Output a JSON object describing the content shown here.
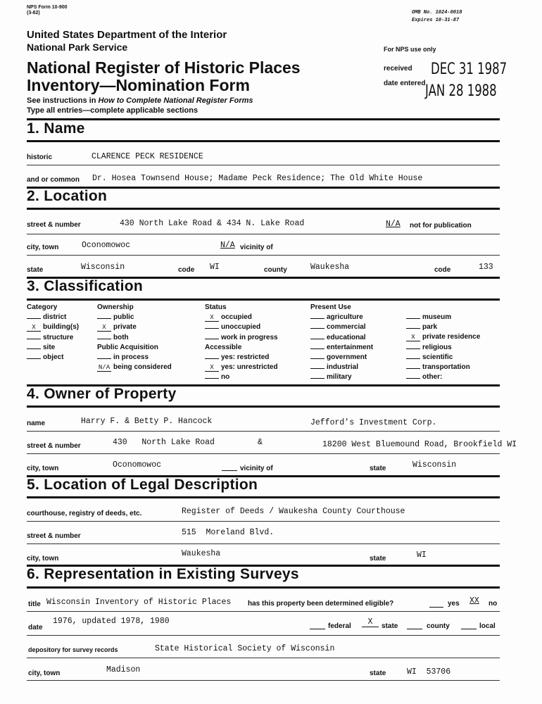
{
  "header": {
    "form_no": "NPS Form 10-900",
    "form_rev": "(3-82)",
    "omb": "OMB No. 1024-0018",
    "expires": "Expires 10-31-87",
    "dept": "United States Department of the Interior",
    "service": "National Park Service",
    "title_line1": "National Register of Historic Places",
    "title_line2": "Inventory—Nomination Form",
    "instructions_prefix": "See instructions in ",
    "instructions_italic": "How to Complete National Register Forms",
    "type_all": "Type all entries—complete applicable sections",
    "nps_use": "For NPS use only",
    "received_label": "received",
    "received_stamp": "DEC 31 1987",
    "entered_label": "date entered",
    "entered_stamp": "JAN 28 1988"
  },
  "s1": {
    "heading": "1. Name",
    "historic_label": "historic",
    "historic": "CLARENCE PECK RESIDENCE",
    "common_label": "and or common",
    "common": "Dr. Hosea Townsend House; Madame Peck Residence; The Old White House"
  },
  "s2": {
    "heading": "2. Location",
    "street_label": "street & number",
    "street": "430 North Lake Road & 434 N. Lake Road",
    "nfp_value": "N/A",
    "nfp_label": "not for publication",
    "city_label": "city, town",
    "city": "Oconomowoc",
    "vicinity_value": "N/A",
    "vicinity_label": "vicinity of",
    "state_label": "state",
    "state": "Wisconsin",
    "code_label": "code",
    "code": "WI",
    "county_label": "county",
    "county": "Waukesha",
    "code2_label": "code",
    "code2": "133"
  },
  "s3": {
    "heading": "3. Classification",
    "category": {
      "title": "Category",
      "items": [
        {
          "mark": "",
          "label": "district"
        },
        {
          "mark": "X",
          "label": "building(s)"
        },
        {
          "mark": "",
          "label": "structure"
        },
        {
          "mark": "",
          "label": "site"
        },
        {
          "mark": "",
          "label": "object"
        }
      ]
    },
    "ownership": {
      "title": "Ownership",
      "items": [
        {
          "mark": "",
          "label": "public"
        },
        {
          "mark": "X",
          "label": "private"
        },
        {
          "mark": "",
          "label": "both"
        }
      ]
    },
    "acquisition": {
      "title": "Public Acquisition",
      "items": [
        {
          "mark": "",
          "label": "in process"
        },
        {
          "mark": "N/A",
          "label": "being considered"
        }
      ]
    },
    "status": {
      "title": "Status",
      "items": [
        {
          "mark": "X",
          "label": "occupied"
        },
        {
          "mark": "",
          "label": "unoccupied"
        },
        {
          "mark": "",
          "label": "work in progress"
        }
      ]
    },
    "accessible": {
      "title": "Accessible",
      "items": [
        {
          "mark": "",
          "label": "yes: restricted"
        },
        {
          "mark": "X",
          "label": "yes: unrestricted"
        },
        {
          "mark": "",
          "label": "no"
        }
      ]
    },
    "present_use": {
      "title": "Present Use",
      "col1": [
        {
          "mark": "",
          "label": "agriculture"
        },
        {
          "mark": "",
          "label": "commercial"
        },
        {
          "mark": "",
          "label": "educational"
        },
        {
          "mark": "",
          "label": "entertainment"
        },
        {
          "mark": "",
          "label": "government"
        },
        {
          "mark": "",
          "label": "industrial"
        },
        {
          "mark": "",
          "label": "military"
        }
      ],
      "col2": [
        {
          "mark": "",
          "label": "museum"
        },
        {
          "mark": "",
          "label": "park"
        },
        {
          "mark": "X",
          "label": "private residence"
        },
        {
          "mark": "",
          "label": "religious"
        },
        {
          "mark": "",
          "label": "scientific"
        },
        {
          "mark": "",
          "label": "transportation"
        },
        {
          "mark": "",
          "label": "other:"
        }
      ]
    }
  },
  "s4": {
    "heading": "4. Owner of Property",
    "name_label": "name",
    "name1": "Harry F. & Betty P. Hancock",
    "name2": "Jefford's Investment Corp.",
    "street_label": "street & number",
    "street1": "430   North Lake Road",
    "amp": "&",
    "street2": "18200 West Bluemound Road, Brookfield WI",
    "city_label": "city, town",
    "city": "Oconomowoc",
    "vicinity_label": "vicinity of",
    "state_label": "state",
    "state": "Wisconsin"
  },
  "s5": {
    "heading": "5. Location of Legal Description",
    "court_label": "courthouse, registry of deeds, etc.",
    "court": "Register of Deeds / Waukesha County Courthouse",
    "street_label": "street & number",
    "street": "515  Moreland Blvd.",
    "city_label": "city, town",
    "city": "Waukesha",
    "state_label": "state",
    "state": "WI"
  },
  "s6": {
    "heading": "6. Representation in Existing Surveys",
    "title_label": "title",
    "title": "Wisconsin Inventory of Historic Places",
    "eligible_q": "has this property been determined eligible?",
    "yes_label": "yes",
    "no_mark": "XX",
    "no_label": "no",
    "date_label": "date",
    "date": "1976, updated 1978, 1980",
    "federal_label": "federal",
    "state_mark": "X",
    "state_label": "state",
    "county_label": "county",
    "local_label": "local",
    "depository_label": "depository for survey records",
    "depository": "State Historical Society of Wisconsin",
    "city_label": "city, town",
    "city": "Madison",
    "st_label": "state",
    "st": "WI  53706"
  }
}
